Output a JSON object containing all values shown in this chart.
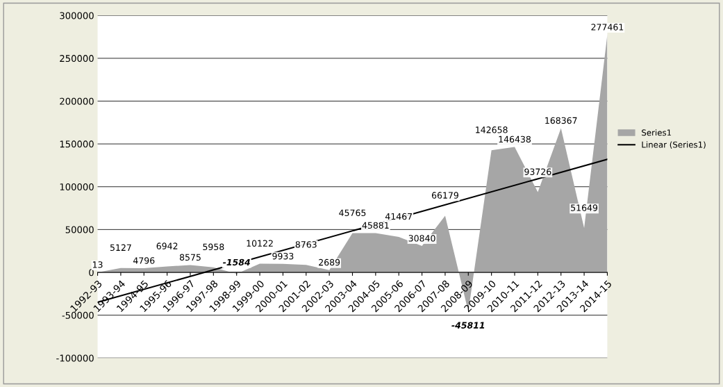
{
  "chart_data": {
    "type": "area",
    "categories": [
      "1992-93",
      "1993-94",
      "1994-95",
      "1995-96",
      "1996-97",
      "1997-98",
      "1998-99",
      "1999-00",
      "2000-01",
      "2001-02",
      "2002-03",
      "2003-04",
      "2004-05",
      "2005-06",
      "2006-07",
      "2007-08",
      "2008-09",
      "2009-10",
      "2010-11",
      "2011-12",
      "2012-13",
      "2013-14",
      "2014-15"
    ],
    "series": [
      {
        "name": "Series1",
        "color": "#a6a6a6",
        "values": [
          13,
          5127,
          4796,
          6942,
          8575,
          5958,
          -1584,
          10122,
          9933,
          8763,
          2689,
          45765,
          45881,
          41467,
          30840,
          66179,
          -45811,
          142658,
          146438,
          93726,
          168367,
          51649,
          277461
        ],
        "value_labels": [
          "13",
          "5127",
          "4796",
          "6942",
          "8575",
          "5958",
          "-1584",
          "10122",
          "9933",
          "8763",
          "2689",
          "45765",
          "45881",
          "41467",
          "30840",
          "66179",
          "-45811",
          "142658",
          "146438",
          "93726",
          "168367",
          "51649",
          "277461"
        ]
      },
      {
        "name": "Linear (Series1)",
        "type": "line",
        "color": "#000000",
        "x": [
          "1992-93",
          "2014-15"
        ],
        "values": [
          -35000,
          132000
        ]
      }
    ],
    "ylim": [
      -100000,
      300000
    ],
    "yticks": [
      -100000,
      -50000,
      0,
      50000,
      100000,
      150000,
      200000,
      250000,
      300000
    ],
    "grid": "y",
    "legend": "right"
  }
}
